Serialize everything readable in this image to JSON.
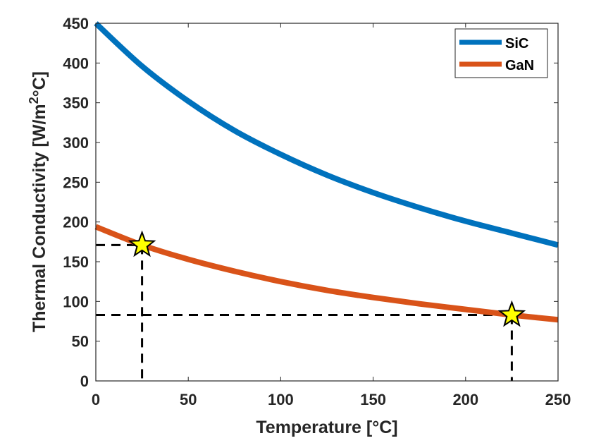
{
  "chart_data": {
    "type": "line",
    "title": "",
    "xlabel": "Temperature [°C]",
    "ylabel_parts": {
      "main": "Thermal Conductivity [W/m",
      "sup": "2",
      "tail": "°C]"
    },
    "ylabel": "Thermal Conductivity [W/m²°C]",
    "xlim": [
      0,
      250
    ],
    "ylim": [
      0,
      450
    ],
    "xticks": [
      0,
      50,
      100,
      150,
      200,
      250
    ],
    "yticks": [
      0,
      50,
      100,
      150,
      200,
      250,
      300,
      350,
      400,
      450
    ],
    "grid": false,
    "legend_position": "top-right",
    "series": [
      {
        "name": "SiC",
        "color": "#0072BD",
        "x": [
          0,
          25,
          50,
          75,
          100,
          125,
          150,
          175,
          200,
          225,
          250
        ],
        "values": [
          450,
          396,
          352,
          315,
          285,
          259,
          237,
          218,
          201,
          186,
          171
        ]
      },
      {
        "name": "GaN",
        "color": "#D95319",
        "x": [
          0,
          25,
          50,
          75,
          100,
          125,
          150,
          175,
          200,
          225,
          250
        ],
        "values": [
          194,
          171,
          153,
          138,
          125,
          114,
          105,
          97,
          90,
          83,
          77
        ]
      }
    ],
    "markers": [
      {
        "label": "GaN at 25°C",
        "x": 25,
        "y": 171,
        "shape": "star",
        "color": "#FFFF00"
      },
      {
        "label": "GaN at 225°C",
        "x": 225,
        "y": 83,
        "shape": "star",
        "color": "#FFFF00"
      }
    ],
    "reference_lines": [
      {
        "x": 25,
        "y": 171,
        "style": "dashed",
        "color": "#000000"
      },
      {
        "x": 225,
        "y": 83,
        "style": "dashed",
        "color": "#000000"
      }
    ]
  }
}
